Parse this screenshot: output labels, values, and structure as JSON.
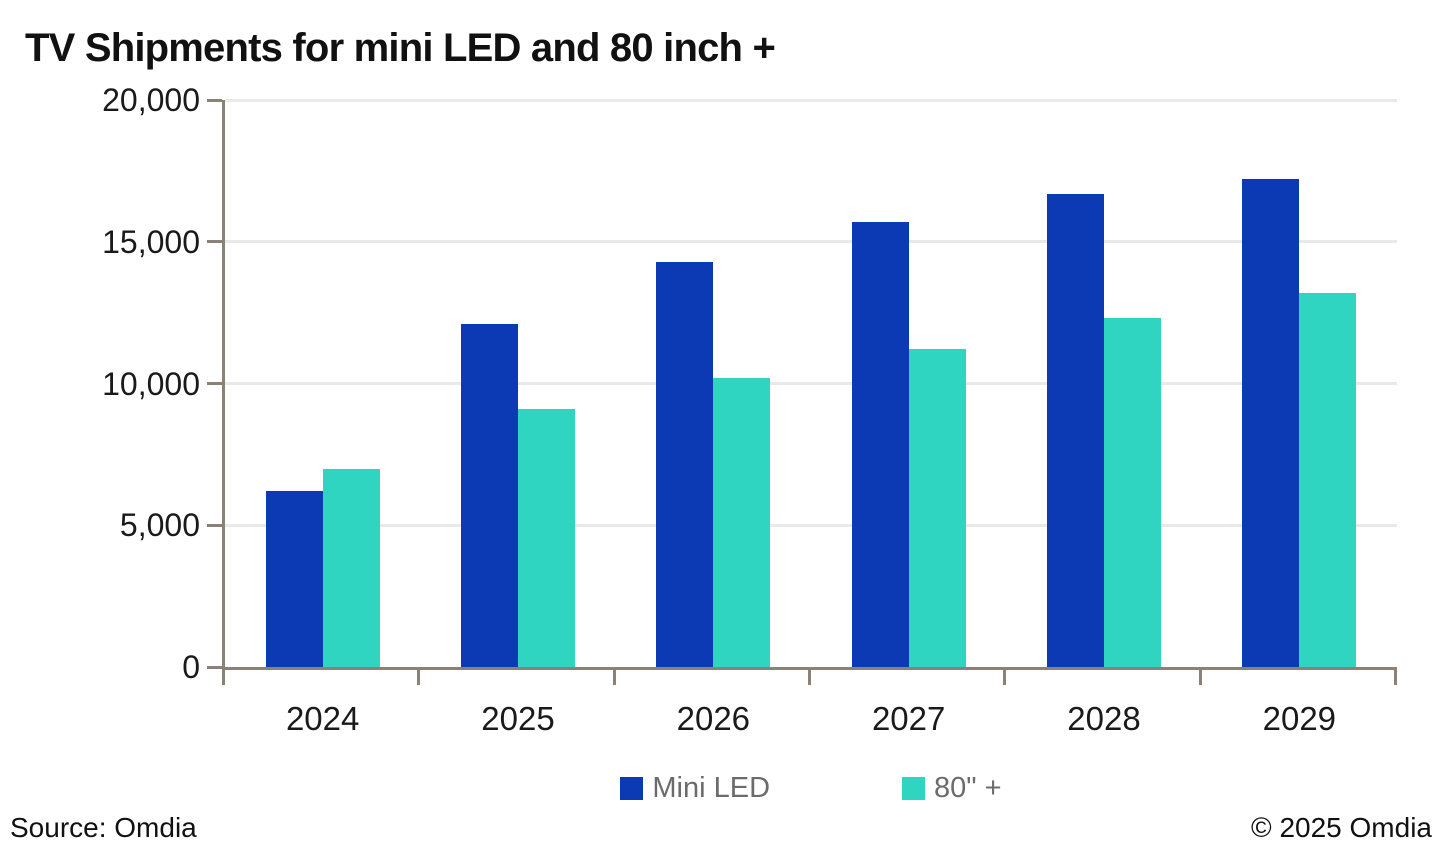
{
  "title": "TV Shipments for mini LED and 80 inch +",
  "chart_data": {
    "type": "bar",
    "title": "TV Shipments for mini LED and 80 inch +",
    "categories": [
      "2024",
      "2025",
      "2026",
      "2027",
      "2028",
      "2029"
    ],
    "series": [
      {
        "name": "Mini LED",
        "color": "#0C3AB4",
        "values": [
          6200,
          12100,
          14300,
          15700,
          16700,
          17200
        ]
      },
      {
        "name": "80\" +",
        "color": "#30D5C1",
        "values": [
          7000,
          9100,
          10200,
          11200,
          12300,
          13200
        ]
      }
    ],
    "xlabel": "",
    "ylabel": "",
    "ylim": [
      0,
      20000
    ],
    "yticks": [
      0,
      5000,
      10000,
      15000,
      20000
    ],
    "ytick_labels": [
      "0",
      "5,000",
      "10,000",
      "15,000",
      "20,000"
    ],
    "grid": "horizontal",
    "legend_position": "bottom"
  },
  "footer": {
    "source": "Source: Omdia",
    "copyright": "© 2025 Omdia"
  },
  "colors": {
    "axis": "#8A8177",
    "gridline": "#E9E9E9",
    "legend_text": "#6B6B6B",
    "title_text": "#111111"
  }
}
